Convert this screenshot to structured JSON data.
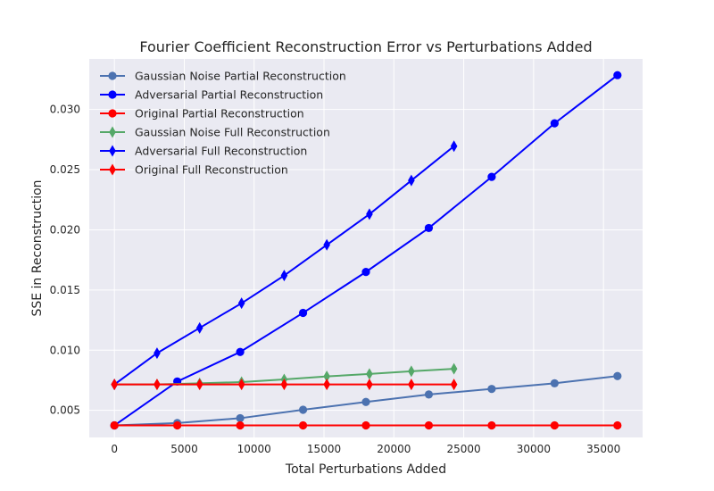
{
  "chart_data": {
    "type": "line",
    "title": "Fourier Coefficient Reconstruction Error vs Perturbations Added",
    "xlabel": "Total Perturbations Added",
    "ylabel": "SSE in Reconstruction",
    "xlim": [
      -1800,
      37800
    ],
    "ylim": [
      0.00275,
      0.0342
    ],
    "xticks": [
      0,
      5000,
      10000,
      15000,
      20000,
      25000,
      30000,
      35000
    ],
    "yticks": [
      0.005,
      0.01,
      0.015,
      0.02,
      0.025,
      0.03
    ],
    "xtick_labels": [
      "0",
      "5000",
      "10000",
      "15000",
      "20000",
      "25000",
      "30000",
      "35000"
    ],
    "ytick_labels": [
      "0.005",
      "0.010",
      "0.015",
      "0.020",
      "0.025",
      "0.030"
    ],
    "grid": true,
    "legend_position": "top-left",
    "background": "#eaeaf2",
    "series": [
      {
        "name": "Gaussian Noise Partial Reconstruction",
        "color": "#4c72b0",
        "marker": "circle",
        "x": [
          0,
          4500,
          9000,
          13500,
          18000,
          22500,
          27000,
          31500,
          36000
        ],
        "y": [
          0.00375,
          0.00395,
          0.00435,
          0.00505,
          0.0057,
          0.00632,
          0.00678,
          0.00725,
          0.00785
        ]
      },
      {
        "name": "Adversarial Partial Reconstruction",
        "color": "#0000ff",
        "marker": "circle",
        "x": [
          0,
          4500,
          9000,
          13500,
          18000,
          22500,
          27000,
          31500,
          36000
        ],
        "y": [
          0.00375,
          0.0074,
          0.00985,
          0.0131,
          0.0165,
          0.02015,
          0.0244,
          0.02885,
          0.03285
        ]
      },
      {
        "name": "Original Partial Reconstruction",
        "color": "#ff0000",
        "marker": "circle",
        "x": [
          0,
          4500,
          9000,
          13500,
          18000,
          22500,
          27000,
          31500,
          36000
        ],
        "y": [
          0.00375,
          0.00375,
          0.00375,
          0.00375,
          0.00375,
          0.00375,
          0.00375,
          0.00375,
          0.00375
        ]
      },
      {
        "name": "Gaussian Noise Full Reconstruction",
        "color": "#55a868",
        "marker": "thin_diamond",
        "x": [
          0,
          3050,
          6100,
          9100,
          12150,
          15200,
          18250,
          21250,
          24300
        ],
        "y": [
          0.00715,
          0.00715,
          0.00725,
          0.00735,
          0.00757,
          0.00782,
          0.00803,
          0.00825,
          0.00845
        ]
      },
      {
        "name": "Adversarial Full Reconstruction",
        "color": "#0000ff",
        "marker": "thin_diamond",
        "x": [
          0,
          3050,
          6100,
          9100,
          12150,
          15200,
          18250,
          21250,
          24300
        ],
        "y": [
          0.00715,
          0.00975,
          0.01185,
          0.0139,
          0.0162,
          0.01875,
          0.0213,
          0.0241,
          0.02695
        ]
      },
      {
        "name": "Original Full Reconstruction",
        "color": "#ff0000",
        "marker": "thin_diamond",
        "x": [
          0,
          3050,
          6100,
          9100,
          12150,
          15200,
          18250,
          21250,
          24300
        ],
        "y": [
          0.00715,
          0.00715,
          0.00715,
          0.00715,
          0.00715,
          0.00715,
          0.00715,
          0.00715,
          0.00715
        ]
      }
    ]
  }
}
